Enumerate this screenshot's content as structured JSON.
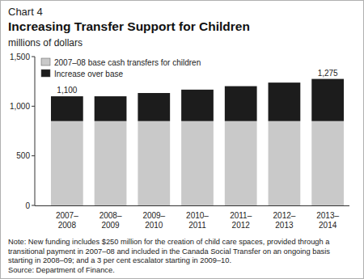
{
  "chart_data": {
    "type": "bar",
    "subtitle": "Chart 4",
    "title": "Increasing Transfer Support for Children",
    "y_label": "millions of dollars",
    "categories": [
      "2007–2008",
      "2008–2009",
      "2009–2010",
      "2010–2011",
      "2011–2012",
      "2012–2013",
      "2013–2014"
    ],
    "series": [
      {
        "name": "2007–08 base cash transfers for children",
        "color": "#c9c9c9",
        "values": [
          850,
          850,
          850,
          850,
          850,
          850,
          850
        ]
      },
      {
        "name": "Increase over base",
        "color": "#1c1c1c",
        "values": [
          250,
          250,
          283,
          317,
          352,
          388,
          425
        ]
      }
    ],
    "stacked": true,
    "ylim": [
      0,
      1500
    ],
    "yticks": [
      0,
      500,
      {
        "value": 1000,
        "label": "1,000"
      },
      {
        "value": 1500,
        "label": "1,500"
      }
    ],
    "grid": false,
    "legend": "upper left",
    "annotations": [
      {
        "category": "2007–2008",
        "value": 1100,
        "label": "1,100"
      },
      {
        "category": "2013–2014",
        "value": 1275,
        "label": "1,275"
      }
    ],
    "note": "Note: New funding includes $250 million for the creation of child care spaces, provided through a transitional payment in 2007–08 and included in the Canada Social Transfer on an ongoing basis starting in 2008–09; and a 3 per cent escalator starting in 2009–10.",
    "source": "Source: Department of Finance."
  }
}
